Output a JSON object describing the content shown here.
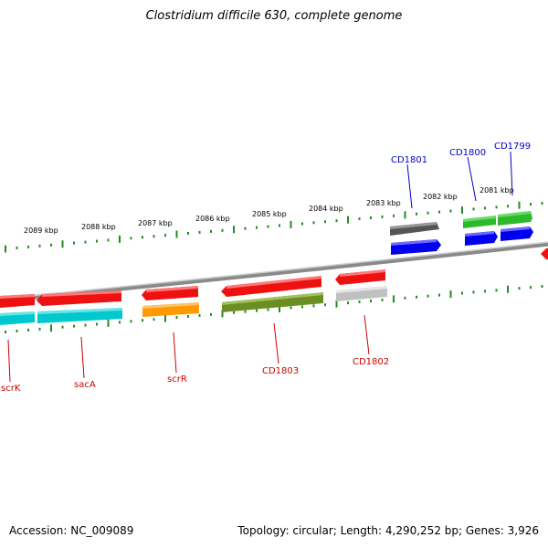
{
  "title": "Clostridium difficile 630, complete genome",
  "footer": {
    "accession": "Accession: NC_009089",
    "summary": "Topology: circular; Length: 4,290,252 bp; Genes: 3,926"
  },
  "scale_labels": [
    "2089 kbp",
    "2088 kbp",
    "2087 kbp",
    "2086 kbp",
    "2085 kbp",
    "2084 kbp",
    "2083 kbp",
    "2082 kbp",
    "2081 kbp"
  ],
  "gene_labels": {
    "top": [
      "CD1801",
      "CD1800",
      "CD1799"
    ],
    "bottom": [
      "scrK",
      "sacA",
      "scrR",
      "CD1803",
      "CD1802"
    ]
  },
  "colors": {
    "red": "#ee1111",
    "cyan": "#00c8cc",
    "orange": "#ff9900",
    "olive": "#6b8e23",
    "gray": "#c0c0c0",
    "darkgray": "#555555",
    "green": "#33cc33",
    "blue": "#0000ee",
    "tick": "#228b22",
    "backbone": "#888888",
    "label_blue": "#0000cc",
    "label_red": "#cc0000"
  }
}
